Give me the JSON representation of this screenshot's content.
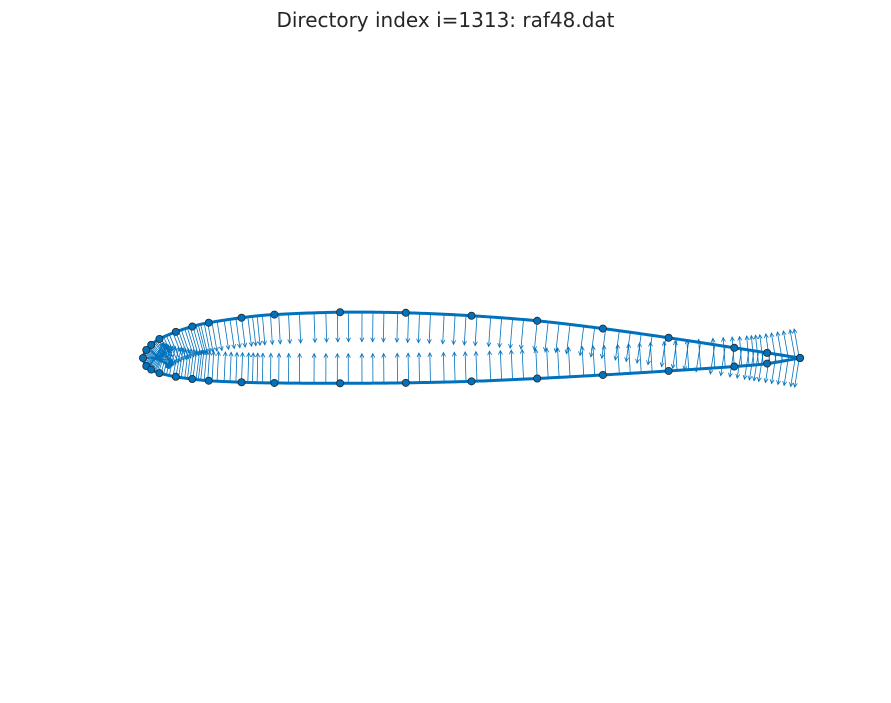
{
  "colors": {
    "line": "#0072BD",
    "marker_edge": "#262626",
    "title": "#262626",
    "background": "#ffffff"
  },
  "chart_data": {
    "type": "scatter",
    "title": "Directory index i=1313: raf48.dat",
    "xlabel": "",
    "ylabel": "",
    "axes_visible": false,
    "grid": false,
    "aspect": "equal",
    "xlim": [
      -0.02,
      1.02
    ],
    "ylim": [
      -0.485,
      0.485
    ],
    "series": [
      {
        "role": "contour",
        "x": [
          1.0,
          0.95,
          0.9,
          0.8,
          0.7,
          0.6,
          0.5,
          0.4,
          0.3,
          0.2,
          0.15,
          0.1,
          0.075,
          0.05,
          0.025,
          0.0125,
          0.005,
          0.0,
          0.005,
          0.0125,
          0.025,
          0.05,
          0.075,
          0.1,
          0.15,
          0.2,
          0.3,
          0.4,
          0.5,
          0.6,
          0.7,
          0.8,
          0.9,
          0.95,
          1.0
        ],
        "y": [
          0.0,
          0.0078,
          0.0156,
          0.0308,
          0.0448,
          0.0566,
          0.0643,
          0.0688,
          0.0697,
          0.0661,
          0.0613,
          0.0537,
          0.0479,
          0.0398,
          0.029,
          0.02,
          0.0122,
          0.0,
          -0.0122,
          -0.0176,
          -0.023,
          -0.0286,
          -0.032,
          -0.0346,
          -0.0369,
          -0.038,
          -0.0385,
          -0.0378,
          -0.0355,
          -0.0312,
          -0.0258,
          -0.0197,
          -0.013,
          -0.0085,
          0.0
        ]
      }
    ],
    "normals": {
      "count_per_side": 96,
      "length": 0.045,
      "direction": "outward"
    }
  }
}
